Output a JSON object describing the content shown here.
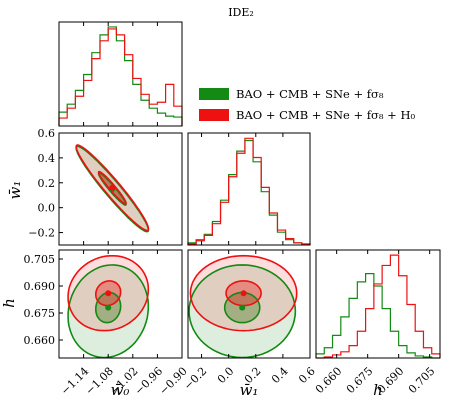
{
  "chart_data": {
    "type": "corner",
    "title": "IDE₂",
    "series": [
      {
        "name": "BAO + CMB + SNe + fσ₈",
        "color": "#138a13"
      },
      {
        "name": "BAO + CMB + SNe + fσ₈ + H₀",
        "color": "#ee1111"
      }
    ],
    "parameters": [
      {
        "label": "w̄₀",
        "range": [
          -1.2,
          -0.9
        ],
        "ticks": [
          "−1.14",
          "−1.08",
          "−1.02",
          "−0.96",
          "−0.90"
        ],
        "tick_values": [
          -1.14,
          -1.08,
          -1.02,
          -0.96,
          -0.9
        ]
      },
      {
        "label": "w̄₁",
        "range": [
          -0.3,
          0.6
        ],
        "ticks": [
          "−0.2",
          "0.0",
          "0.2",
          "0.4",
          "0.6"
        ],
        "tick_values": [
          -0.2,
          0.0,
          0.2,
          0.4,
          0.6
        ],
        "y_ticks": [
          "−0.2",
          "0.0",
          "0.2",
          "0.4",
          "0.6"
        ]
      },
      {
        "label": "h",
        "range": [
          0.65,
          0.71
        ],
        "ticks": [
          "0.660",
          "0.675",
          "0.690",
          "0.705"
        ],
        "tick_values": [
          0.66,
          0.675,
          0.69,
          0.705
        ],
        "y_ticks": [
          "0.660",
          "0.675",
          "0.690",
          "0.705"
        ]
      }
    ],
    "marginals": [
      {
        "param": "w̄₀",
        "bin_edges": [
          -1.2,
          -1.18,
          -1.16,
          -1.14,
          -1.12,
          -1.1,
          -1.08,
          -1.06,
          -1.04,
          -1.02,
          -1.0,
          -0.98,
          -0.96,
          -0.94,
          -0.92,
          -0.9
        ],
        "series_values": [
          [
            0.14,
            0.22,
            0.36,
            0.52,
            0.74,
            0.92,
            1.0,
            0.86,
            0.66,
            0.42,
            0.26,
            0.18,
            0.13,
            0.1,
            0.09
          ],
          [
            0.08,
            0.18,
            0.3,
            0.46,
            0.68,
            0.86,
            0.98,
            0.92,
            0.72,
            0.48,
            0.32,
            0.22,
            0.24,
            0.42,
            0.2
          ]
        ]
      },
      {
        "param": "w̄₁",
        "bin_edges": [
          -0.3,
          -0.24,
          -0.18,
          -0.12,
          -0.06,
          0.0,
          0.06,
          0.12,
          0.18,
          0.24,
          0.3,
          0.36,
          0.42,
          0.48,
          0.54,
          0.6
        ],
        "series_values": [
          [
            0.02,
            0.05,
            0.1,
            0.22,
            0.42,
            0.66,
            0.88,
            0.98,
            0.78,
            0.5,
            0.28,
            0.12,
            0.05,
            0.02,
            0.01
          ],
          [
            0.01,
            0.04,
            0.09,
            0.2,
            0.4,
            0.64,
            0.86,
            1.0,
            0.82,
            0.54,
            0.3,
            0.14,
            0.06,
            0.02,
            0.01
          ]
        ]
      },
      {
        "param": "h",
        "bin_edges": [
          0.65,
          0.654,
          0.658,
          0.662,
          0.666,
          0.67,
          0.674,
          0.678,
          0.682,
          0.686,
          0.69,
          0.694,
          0.698,
          0.702,
          0.706,
          0.71
        ],
        "series_values": [
          [
            0.04,
            0.1,
            0.22,
            0.4,
            0.58,
            0.74,
            0.82,
            0.7,
            0.48,
            0.26,
            0.12,
            0.05,
            0.02,
            0.01,
            0.0
          ],
          [
            0.0,
            0.01,
            0.03,
            0.06,
            0.12,
            0.26,
            0.48,
            0.72,
            0.9,
            1.0,
            0.8,
            0.52,
            0.26,
            0.1,
            0.04
          ]
        ]
      }
    ],
    "joint_2d": [
      {
        "x_param": "w̄₀",
        "y_param": "w̄₁",
        "contours": [
          {
            "series": 0,
            "level": "68%",
            "center": [
              -1.07,
              0.15
            ],
            "sx": 0.022,
            "sy": 0.085,
            "rho": -0.96
          },
          {
            "series": 0,
            "level": "95%",
            "center": [
              -1.07,
              0.15
            ],
            "sx": 0.036,
            "sy": 0.14,
            "rho": -0.96
          },
          {
            "series": 1,
            "level": "68%",
            "center": [
              -1.07,
              0.16
            ],
            "sx": 0.022,
            "sy": 0.085,
            "rho": -0.96
          },
          {
            "series": 1,
            "level": "95%",
            "center": [
              -1.07,
              0.16
            ],
            "sx": 0.036,
            "sy": 0.14,
            "rho": -0.96
          }
        ]
      },
      {
        "x_param": "w̄₀",
        "y_param": "h",
        "contours": [
          {
            "series": 0,
            "level": "68%",
            "center": [
              -1.08,
              0.678
            ],
            "sx": 0.02,
            "sy": 0.0055,
            "rho": 0.1
          },
          {
            "series": 0,
            "level": "95%",
            "center": [
              -1.08,
              0.676
            ],
            "sx": 0.04,
            "sy": 0.0105,
            "rho": 0.1
          },
          {
            "series": 1,
            "level": "68%",
            "center": [
              -1.08,
              0.686
            ],
            "sx": 0.02,
            "sy": 0.0045,
            "rho": 0.1
          },
          {
            "series": 1,
            "level": "95%",
            "center": [
              -1.08,
              0.686
            ],
            "sx": 0.04,
            "sy": 0.0085,
            "rho": 0.1
          }
        ]
      },
      {
        "x_param": "w̄₁",
        "y_param": "h",
        "contours": [
          {
            "series": 0,
            "level": "68%",
            "center": [
              0.1,
              0.678
            ],
            "sx": 0.085,
            "sy": 0.0055,
            "rho": 0.0
          },
          {
            "series": 0,
            "level": "95%",
            "center": [
              0.1,
              0.676
            ],
            "sx": 0.16,
            "sy": 0.0105,
            "rho": 0.0
          },
          {
            "series": 1,
            "level": "68%",
            "center": [
              0.11,
              0.686
            ],
            "sx": 0.085,
            "sy": 0.0045,
            "rho": 0.0
          },
          {
            "series": 1,
            "level": "95%",
            "center": [
              0.11,
              0.686
            ],
            "sx": 0.16,
            "sy": 0.0085,
            "rho": 0.0
          }
        ]
      }
    ]
  }
}
